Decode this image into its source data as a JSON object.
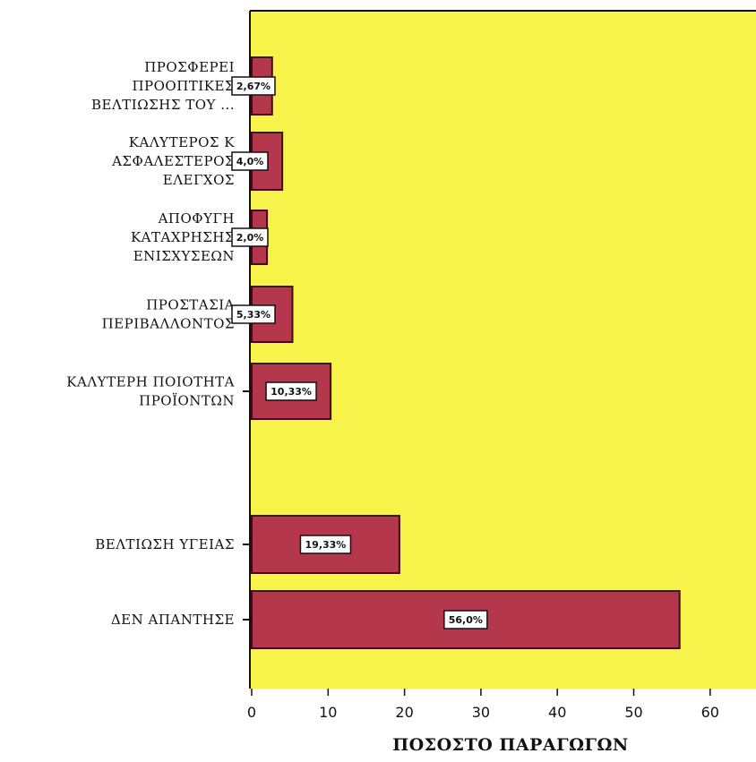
{
  "chart_data": {
    "type": "bar",
    "orientation": "horizontal",
    "categories": [
      [
        "ΠΡΟΣΦΕΡΕΙ",
        "ΠΡΟΟΠΤΙΚΕΣ",
        "ΒΕΛΤΙΩΣΗΣ ΤΟΥ ..."
      ],
      [
        "ΚΑΛΥΤΕΡΟΣ Κ",
        "ΑΣΦΑΛΕΣΤΕΡΟΣ",
        "ΕΛΕΓΧΟΣ"
      ],
      [
        "ΑΠΟΦΥΓΗ",
        "ΚΑΤΑΧΡΗΣΗΣ",
        "ΕΝΙΣΧΥΣΕΩΝ"
      ],
      [
        "ΠΡΟΣΤΑΣΙΑ",
        "ΠΕΡΙΒΑΛΛΟΝΤΟΣ"
      ],
      [
        "ΚΑΛΥΤΕΡΗ ΠΟΙΟΤΗΤΑ",
        "ΠΡΟΪΟΝΤΩΝ"
      ],
      [
        "ΒΕΛΤΙΩΣΗ ΥΓΕΙΑΣ"
      ],
      [
        "ΔΕΝ ΑΠΑΝΤΗΣΕ"
      ]
    ],
    "values": [
      2.67,
      4.0,
      2.0,
      5.33,
      10.33,
      19.33,
      56.0
    ],
    "data_labels": [
      "2,67%",
      "4,0%",
      "2,0%",
      "5,33%",
      "10,33%",
      "19,33%",
      "56,0%"
    ],
    "xlabel": "ΠΟΣΟΣΤΟ ΠΑΡΑΓΩΓΩΝ",
    "xticks": [
      "0",
      "10",
      "20",
      "30",
      "40",
      "50",
      "60"
    ],
    "xlim": [
      0,
      66
    ],
    "grid": false,
    "colors": {
      "plot_background": "#f7f34a",
      "bar_fill": "#b5374c",
      "bar_stroke": "#3a0f18",
      "label_box": "#ffffff"
    }
  }
}
